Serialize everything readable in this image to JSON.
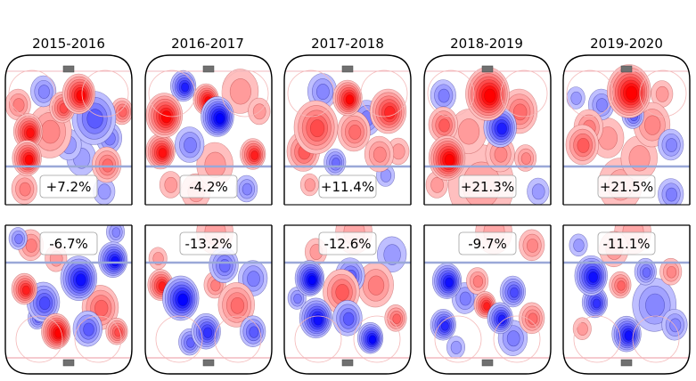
{
  "chart_data": {
    "type": "heatmap",
    "title": "",
    "description": "Unblocked shot rate differential vs league average, offensive zone (top row) and defensive zone (bottom row), by season",
    "colormap": {
      "positive": "#ff0000",
      "negative": "#0000ff",
      "neutral": "#ffffff"
    },
    "rink_colors": {
      "boards": "#000000",
      "blue_line": "#9aa8d8",
      "red_line": "#f2b8bf",
      "net": "#707070",
      "faceoff_circle": "#f4b8b8"
    },
    "columns": [
      "2015-2016",
      "2016-2017",
      "2017-2018",
      "2018-2019",
      "2019-2020"
    ],
    "rows": [
      {
        "zone": "offense",
        "labels": [
          "+7.2%",
          "-4.2%",
          "+11.4%",
          "+21.3%",
          "+21.5%"
        ],
        "values": [
          7.2,
          -4.2,
          11.4,
          21.3,
          21.5
        ],
        "hotspots": [
          [
            [
              0.58,
              0.17,
              0.09,
              0.9
            ],
            [
              0.18,
              0.45,
              0.08,
              0.85
            ],
            [
              0.17,
              0.65,
              0.08,
              0.9
            ],
            [
              0.45,
              0.27,
              0.07,
              0.6
            ],
            [
              0.35,
              0.45,
              0.12,
              0.35
            ],
            [
              0.7,
              0.35,
              0.12,
              -0.55
            ],
            [
              0.82,
              0.5,
              0.07,
              -0.4
            ],
            [
              0.8,
              0.7,
              0.08,
              0.45
            ],
            [
              0.92,
              0.3,
              0.06,
              0.5
            ],
            [
              0.3,
              0.15,
              0.07,
              -0.35
            ],
            [
              0.5,
              0.55,
              0.07,
              -0.3
            ],
            [
              0.1,
              0.25,
              0.07,
              0.4
            ],
            [
              0.6,
              0.65,
              0.08,
              -0.25
            ],
            [
              0.15,
              0.88,
              0.07,
              0.4
            ],
            [
              0.78,
              0.9,
              0.06,
              -0.3
            ]
          ],
          [
            [
              0.15,
              0.33,
              0.1,
              0.9
            ],
            [
              0.12,
              0.6,
              0.08,
              0.85
            ],
            [
              0.48,
              0.21,
              0.07,
              0.9
            ],
            [
              0.57,
              0.34,
              0.09,
              -0.95
            ],
            [
              0.3,
              0.11,
              0.07,
              -0.8
            ],
            [
              0.85,
              0.62,
              0.07,
              0.8
            ],
            [
              0.35,
              0.55,
              0.08,
              -0.4
            ],
            [
              0.55,
              0.7,
              0.1,
              0.3
            ],
            [
              0.75,
              0.15,
              0.1,
              0.3
            ],
            [
              0.9,
              0.3,
              0.06,
              0.3
            ],
            [
              0.4,
              0.9,
              0.08,
              0.25
            ],
            [
              0.8,
              0.88,
              0.06,
              -0.35
            ],
            [
              0.2,
              0.85,
              0.06,
              0.3
            ]
          ],
          [
            [
              0.5,
              0.2,
              0.08,
              0.9
            ],
            [
              0.82,
              0.3,
              0.1,
              0.75
            ],
            [
              0.25,
              0.42,
              0.12,
              0.6
            ],
            [
              0.15,
              0.6,
              0.09,
              0.55
            ],
            [
              0.55,
              0.45,
              0.09,
              0.45
            ],
            [
              0.65,
              0.35,
              0.08,
              -0.4
            ],
            [
              0.3,
              0.15,
              0.08,
              -0.35
            ],
            [
              0.75,
              0.62,
              0.08,
              0.35
            ],
            [
              0.4,
              0.68,
              0.06,
              -0.45
            ],
            [
              0.9,
              0.6,
              0.06,
              0.3
            ],
            [
              0.8,
              0.78,
              0.05,
              -0.3
            ],
            [
              0.2,
              0.85,
              0.05,
              0.3
            ]
          ],
          [
            [
              0.5,
              0.17,
              0.12,
              0.95
            ],
            [
              0.18,
              0.65,
              0.1,
              0.95
            ],
            [
              0.6,
              0.42,
              0.09,
              -0.8
            ],
            [
              0.15,
              0.4,
              0.08,
              0.55
            ],
            [
              0.75,
              0.3,
              0.1,
              0.45
            ],
            [
              0.35,
              0.45,
              0.1,
              0.3
            ],
            [
              0.15,
              0.18,
              0.07,
              -0.4
            ],
            [
              0.6,
              0.62,
              0.08,
              0.35
            ],
            [
              0.8,
              0.65,
              0.06,
              0.35
            ],
            [
              0.45,
              0.85,
              0.18,
              0.2
            ],
            [
              0.1,
              0.85,
              0.06,
              0.3
            ],
            [
              0.9,
              0.9,
              0.06,
              -0.3
            ]
          ],
          [
            [
              0.52,
              0.15,
              0.12,
              0.95
            ],
            [
              0.15,
              0.55,
              0.09,
              0.55
            ],
            [
              0.2,
              0.42,
              0.08,
              0.4
            ],
            [
              0.55,
              0.33,
              0.06,
              -0.5
            ],
            [
              0.7,
              0.4,
              0.1,
              0.35
            ],
            [
              0.78,
              0.17,
              0.06,
              0.3
            ],
            [
              0.85,
              0.55,
              0.07,
              -0.35
            ],
            [
              0.35,
              0.5,
              0.09,
              0.3
            ],
            [
              0.3,
              0.25,
              0.07,
              -0.35
            ],
            [
              0.6,
              0.65,
              0.1,
              0.3
            ],
            [
              0.1,
              0.2,
              0.05,
              -0.3
            ],
            [
              0.85,
              0.92,
              0.07,
              -0.4
            ],
            [
              0.45,
              0.85,
              0.12,
              0.2
            ]
          ]
        ]
      },
      {
        "zone": "defense",
        "labels": [
          "-6.7%",
          "-13.2%",
          "-12.6%",
          "-9.7%",
          "-11.1%"
        ],
        "values": [
          -6.7,
          -13.2,
          -12.6,
          -9.7,
          -11.1
        ],
        "hotspots": [
          [
            [
              0.4,
              0.8,
              0.08,
              0.95
            ],
            [
              0.15,
              0.48,
              0.07,
              0.8
            ],
            [
              0.58,
              0.4,
              0.1,
              -0.85
            ],
            [
              0.85,
              0.26,
              0.08,
              -0.85
            ],
            [
              0.3,
              0.58,
              0.09,
              -0.6
            ],
            [
              0.75,
              0.62,
              0.1,
              0.5
            ],
            [
              0.2,
              0.15,
              0.07,
              0.4
            ],
            [
              0.65,
              0.78,
              0.08,
              -0.55
            ],
            [
              0.88,
              0.8,
              0.06,
              0.6
            ],
            [
              0.1,
              0.1,
              0.05,
              -0.4
            ],
            [
              0.87,
              0.05,
              0.05,
              -0.35
            ],
            [
              0.4,
              0.25,
              0.06,
              0.3
            ],
            [
              0.25,
              0.7,
              0.05,
              -0.45
            ]
          ],
          [
            [
              0.28,
              0.55,
              0.1,
              -0.9
            ],
            [
              0.12,
              0.45,
              0.07,
              0.8
            ],
            [
              0.48,
              0.8,
              0.08,
              -0.7
            ],
            [
              0.72,
              0.6,
              0.1,
              0.45
            ],
            [
              0.62,
              0.3,
              0.08,
              -0.45
            ],
            [
              0.85,
              0.4,
              0.08,
              -0.4
            ],
            [
              0.55,
              0.45,
              0.06,
              0.4
            ],
            [
              0.85,
              0.8,
              0.07,
              -0.55
            ],
            [
              0.35,
              0.88,
              0.06,
              -0.5
            ],
            [
              0.1,
              0.25,
              0.05,
              0.3
            ],
            [
              0.55,
              0.05,
              0.1,
              0.25
            ]
          ],
          [
            [
              0.2,
              0.4,
              0.08,
              -0.95
            ],
            [
              0.25,
              0.7,
              0.09,
              -0.85
            ],
            [
              0.68,
              0.85,
              0.07,
              -0.9
            ],
            [
              0.45,
              0.5,
              0.1,
              0.55
            ],
            [
              0.72,
              0.45,
              0.1,
              0.4
            ],
            [
              0.5,
              0.7,
              0.08,
              -0.55
            ],
            [
              0.52,
              0.38,
              0.08,
              -0.5
            ],
            [
              0.88,
              0.7,
              0.06,
              0.5
            ],
            [
              0.25,
              0.2,
              0.06,
              0.3
            ],
            [
              0.85,
              0.22,
              0.08,
              -0.3
            ],
            [
              0.1,
              0.55,
              0.05,
              -0.4
            ],
            [
              0.55,
              0.05,
              0.1,
              0.2
            ]
          ],
          [
            [
              0.18,
              0.42,
              0.08,
              -0.85
            ],
            [
              0.15,
              0.75,
              0.07,
              -0.75
            ],
            [
              0.48,
              0.6,
              0.06,
              0.8
            ],
            [
              0.6,
              0.7,
              0.07,
              -0.8
            ],
            [
              0.7,
              0.5,
              0.07,
              -0.6
            ],
            [
              0.85,
              0.7,
              0.07,
              0.45
            ],
            [
              0.32,
              0.55,
              0.07,
              -0.4
            ],
            [
              0.42,
              0.42,
              0.06,
              0.4
            ],
            [
              0.85,
              0.15,
              0.07,
              0.35
            ],
            [
              0.7,
              0.85,
              0.08,
              -0.4
            ],
            [
              0.25,
              0.92,
              0.05,
              -0.3
            ],
            [
              0.55,
              0.05,
              0.1,
              0.2
            ]
          ],
          [
            [
              0.22,
              0.38,
              0.09,
              -0.85
            ],
            [
              0.5,
              0.82,
              0.08,
              -0.85
            ],
            [
              0.25,
              0.58,
              0.07,
              -0.7
            ],
            [
              0.45,
              0.45,
              0.06,
              0.5
            ],
            [
              0.72,
              0.6,
              0.12,
              -0.35
            ],
            [
              0.65,
              0.35,
              0.06,
              -0.45
            ],
            [
              0.85,
              0.35,
              0.06,
              0.35
            ],
            [
              0.4,
              0.18,
              0.08,
              0.3
            ],
            [
              0.12,
              0.15,
              0.05,
              -0.3
            ],
            [
              0.88,
              0.75,
              0.07,
              -0.35
            ],
            [
              0.15,
              0.78,
              0.05,
              0.3
            ],
            [
              0.55,
              0.05,
              0.1,
              0.2
            ]
          ]
        ]
      }
    ]
  }
}
